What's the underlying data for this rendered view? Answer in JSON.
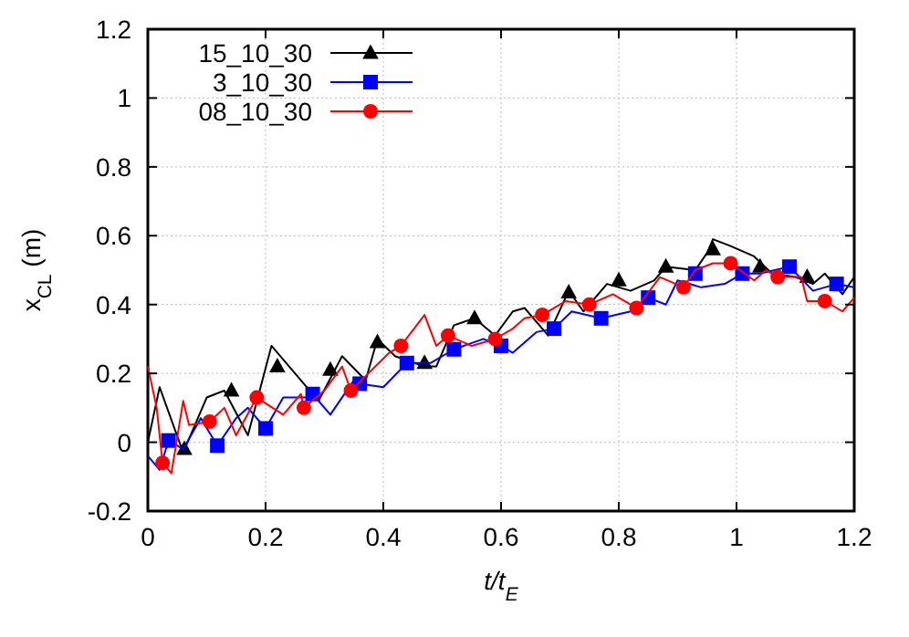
{
  "chart_data": {
    "type": "line",
    "xlabel": "t/t$_{E}$",
    "ylabel": "x$_{CL}$ (m)",
    "xlim": [
      0,
      1.2
    ],
    "ylim": [
      -0.2,
      1.2
    ],
    "xticks": [
      0,
      0.2,
      0.4,
      0.6,
      0.8,
      1,
      1.2
    ],
    "yticks": [
      -0.2,
      0,
      0.2,
      0.4,
      0.6,
      0.8,
      1,
      1.2
    ],
    "grid": true,
    "legend": "top left",
    "series": [
      {
        "name": "15_10_30",
        "color": "#000000",
        "x": [
          0,
          0.02,
          0.06,
          0.1,
          0.13,
          0.17,
          0.21,
          0.25,
          0.29,
          0.33,
          0.37,
          0.39,
          0.42,
          0.47,
          0.49,
          0.52,
          0.555,
          0.59,
          0.62,
          0.64,
          0.68,
          0.715,
          0.74,
          0.78,
          0.82,
          0.86,
          0.88,
          0.93,
          0.95,
          0.96,
          0.99,
          1.03,
          1.06,
          1.1,
          1.13,
          1.15,
          1.18,
          1.2
        ],
        "values": [
          0,
          0.16,
          -0.03,
          0.13,
          0.15,
          0.02,
          0.28,
          0.2,
          0.12,
          0.25,
          0.18,
          0.3,
          0.25,
          0.22,
          0.22,
          0.34,
          0.36,
          0.31,
          0.38,
          0.39,
          0.31,
          0.44,
          0.38,
          0.46,
          0.44,
          0.47,
          0.51,
          0.5,
          0.55,
          0.59,
          0.57,
          0.54,
          0.49,
          0.48,
          0.46,
          0.49,
          0.43,
          0.48
        ]
      },
      {
        "color": "#000000",
        "type": "scatter",
        "marker": "triangle",
        "x": [
          0.062,
          0.142,
          0.22,
          0.31,
          0.39,
          0.47,
          0.555,
          0.715,
          0.8,
          0.88,
          0.96,
          1.04,
          1.12
        ],
        "values": [
          -0.02,
          0.15,
          0.22,
          0.21,
          0.29,
          0.23,
          0.36,
          0.435,
          0.47,
          0.51,
          0.56,
          0.51,
          0.48
        ]
      },
      {
        "name": "3_10_30",
        "color": "#0000ff",
        "x": [
          0,
          0.02,
          0.035,
          0.06,
          0.09,
          0.118,
          0.15,
          0.17,
          0.2,
          0.23,
          0.27,
          0.28,
          0.31,
          0.35,
          0.36,
          0.4,
          0.44,
          0.48,
          0.52,
          0.57,
          0.6,
          0.62,
          0.66,
          0.69,
          0.72,
          0.77,
          0.82,
          0.85,
          0.88,
          0.9,
          0.94,
          0.98,
          1.01,
          1.04,
          1.09,
          1.13,
          1.17,
          1.2
        ],
        "values": [
          -0.04,
          -0.08,
          0.005,
          -0.02,
          0.07,
          -0.01,
          0.07,
          0.1,
          0.04,
          0.13,
          0.13,
          0.14,
          0.08,
          0.18,
          0.17,
          0.16,
          0.23,
          0.23,
          0.27,
          0.3,
          0.28,
          0.26,
          0.32,
          0.33,
          0.38,
          0.36,
          0.38,
          0.42,
          0.4,
          0.47,
          0.45,
          0.46,
          0.49,
          0.49,
          0.51,
          0.44,
          0.46,
          0.45
        ]
      },
      {
        "color": "#0000ff",
        "type": "scatter",
        "marker": "square",
        "x": [
          0.035,
          0.118,
          0.2,
          0.28,
          0.36,
          0.44,
          0.52,
          0.6,
          0.69,
          0.77,
          0.85,
          0.93,
          1.01,
          1.09,
          1.17
        ],
        "values": [
          0.005,
          -0.01,
          0.04,
          0.14,
          0.17,
          0.23,
          0.27,
          0.28,
          0.33,
          0.36,
          0.42,
          0.49,
          0.49,
          0.51,
          0.46
        ]
      },
      {
        "name": "08_10_30",
        "color": "#ff0000",
        "x": [
          0,
          0.015,
          0.025,
          0.04,
          0.06,
          0.07,
          0.105,
          0.13,
          0.15,
          0.185,
          0.23,
          0.26,
          0.265,
          0.3,
          0.33,
          0.345,
          0.41,
          0.43,
          0.47,
          0.49,
          0.51,
          0.55,
          0.59,
          0.62,
          0.64,
          0.67,
          0.71,
          0.75,
          0.79,
          0.83,
          0.87,
          0.91,
          0.93,
          0.96,
          0.99,
          1.03,
          1.05,
          1.07,
          1.11,
          1.12,
          1.15,
          1.18,
          1.2
        ],
        "values": [
          0.22,
          0.1,
          -0.06,
          -0.09,
          0.12,
          0.05,
          0.06,
          0.1,
          0.02,
          0.13,
          0.08,
          0.14,
          0.1,
          0.15,
          0.22,
          0.15,
          0.26,
          0.28,
          0.37,
          0.28,
          0.31,
          0.28,
          0.3,
          0.33,
          0.36,
          0.37,
          0.41,
          0.4,
          0.43,
          0.39,
          0.48,
          0.45,
          0.5,
          0.52,
          0.52,
          0.47,
          0.5,
          0.48,
          0.48,
          0.41,
          0.41,
          0.38,
          0.42
        ]
      },
      {
        "color": "#ff0000",
        "type": "scatter",
        "marker": "circle",
        "x": [
          0.025,
          0.105,
          0.185,
          0.265,
          0.345,
          0.43,
          0.51,
          0.59,
          0.67,
          0.75,
          0.83,
          0.91,
          0.99,
          1.07,
          1.15
        ],
        "values": [
          -0.06,
          0.06,
          0.13,
          0.1,
          0.15,
          0.28,
          0.31,
          0.3,
          0.37,
          0.4,
          0.39,
          0.45,
          0.52,
          0.48,
          0.41
        ]
      }
    ]
  }
}
